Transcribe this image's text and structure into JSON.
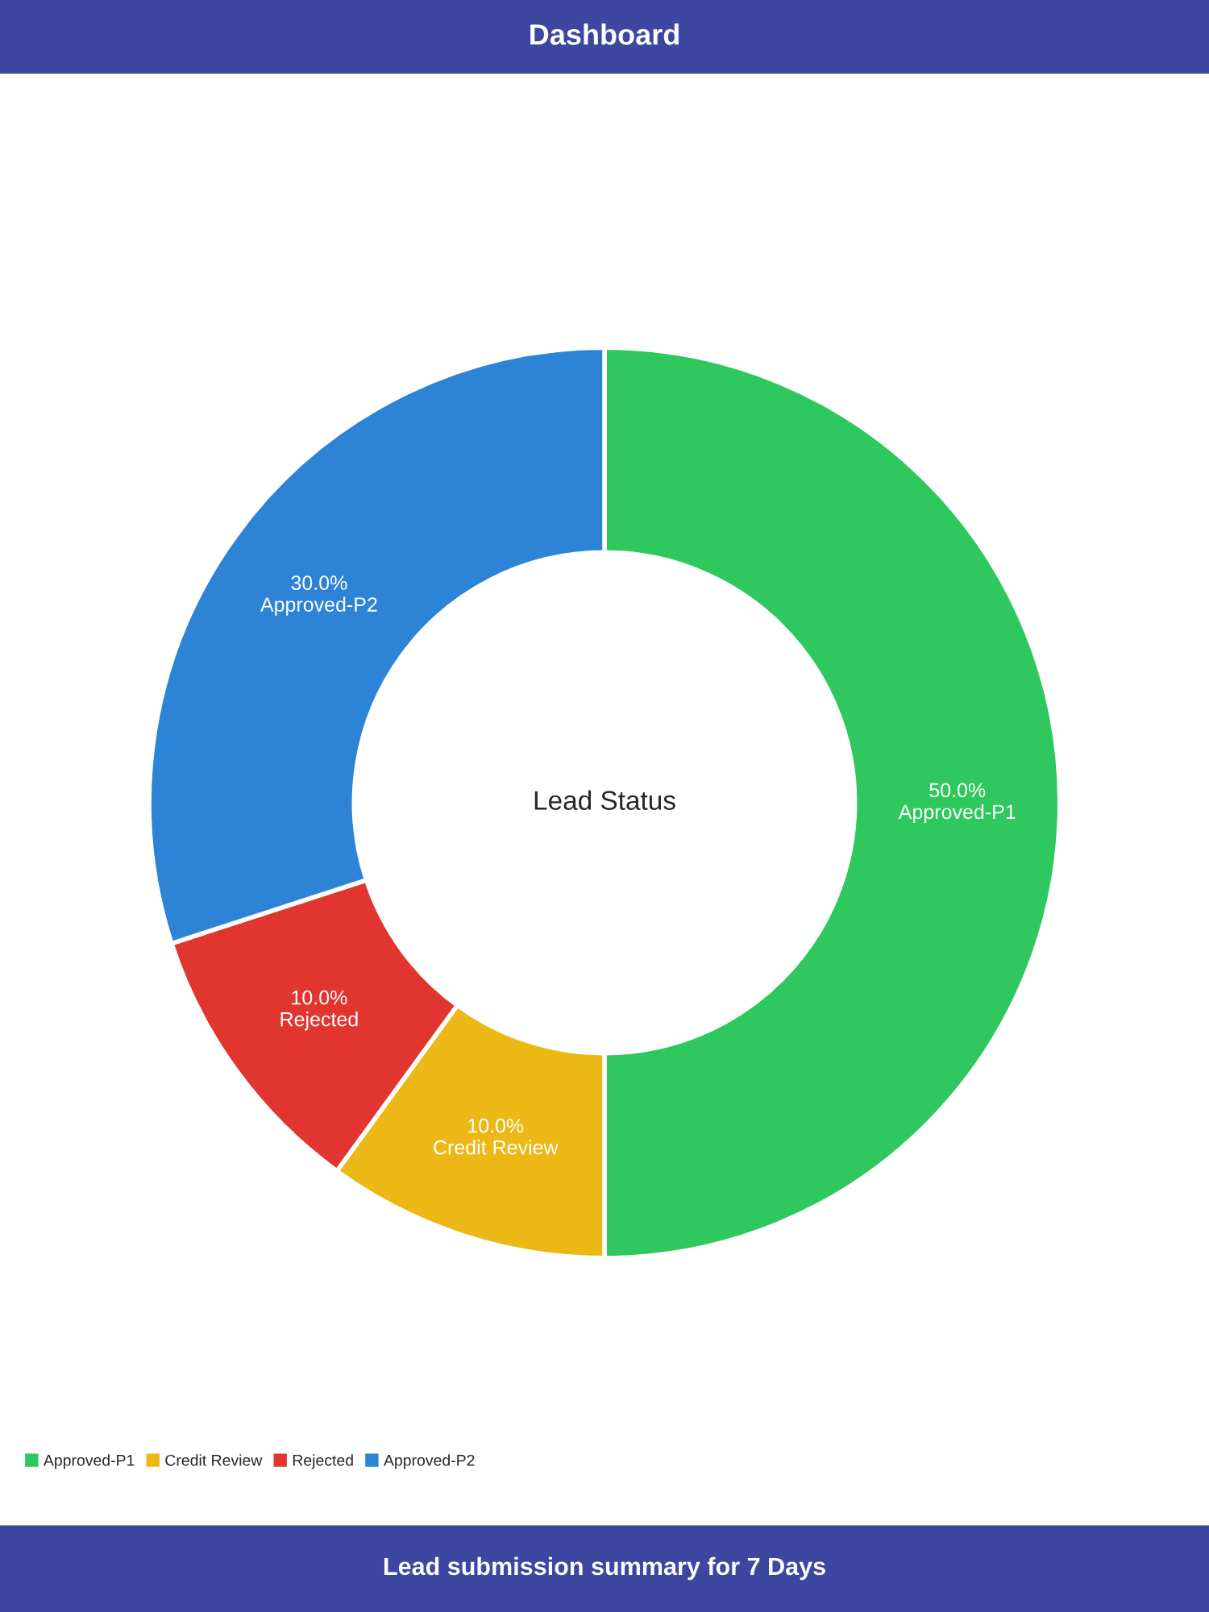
{
  "chart_data": {
    "type": "donut",
    "title": "Dashboard",
    "subtitle": "Lead Status",
    "categories": [
      "Approved-P1",
      "Credit Review",
      "Rejected",
      "Approved-P2"
    ],
    "values": [
      50,
      10,
      10,
      30
    ],
    "colors": [
      "#2fc85e",
      "#ecb816",
      "#e0362f",
      "#2d83d6"
    ],
    "value_labels": [
      "50.0%",
      "10.0%",
      "10.0%",
      "30.0%"
    ],
    "legend": "bottom left",
    "annotations": [
      "Lead submission summary for 7 Days"
    ]
  }
}
